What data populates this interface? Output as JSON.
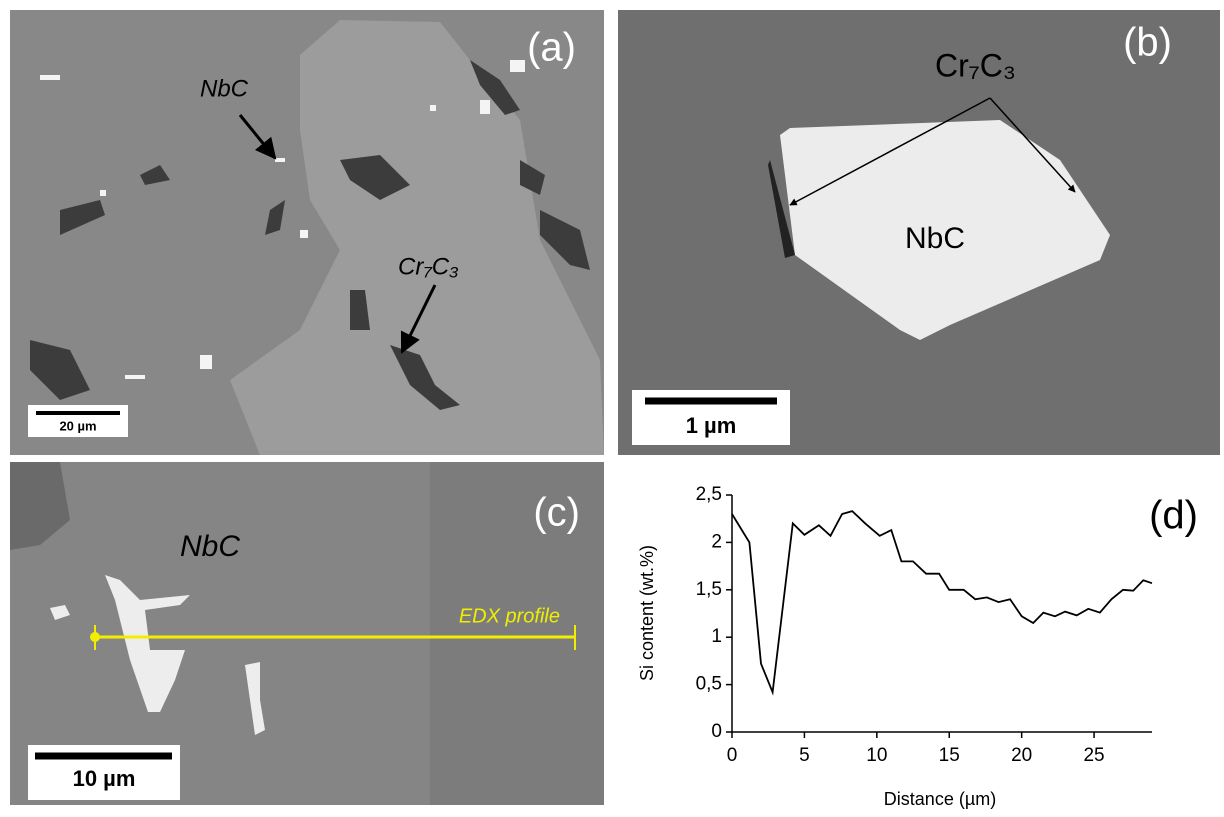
{
  "panels": {
    "a": {
      "label": "(a)",
      "annotations": [
        "NbC",
        "Cr₇C₃"
      ],
      "scale_bar": "20 µm"
    },
    "b": {
      "label": "(b)",
      "annotations": [
        "Cr₇C₃",
        "NbC"
      ],
      "scale_bar": "1 µm"
    },
    "c": {
      "label": "(c)",
      "annotations": [
        "NbC",
        "EDX profile"
      ],
      "scale_bar": "10 µm"
    },
    "d": {
      "label": "(d)"
    }
  },
  "chart_data": {
    "type": "line",
    "x": [
      0,
      1.2,
      2,
      2.8,
      4.2,
      5,
      6,
      6.8,
      7.6,
      8.3,
      9.2,
      10.2,
      11,
      11.7,
      12.5,
      13.4,
      14.3,
      15,
      16,
      16.8,
      17.6,
      18.4,
      19.2,
      20,
      20.8,
      21.5,
      22.3,
      23,
      23.8,
      24.6,
      25.4,
      26.2,
      27,
      27.7,
      28.4,
      29
    ],
    "values": [
      2.3,
      2.0,
      0.72,
      0.42,
      2.2,
      2.08,
      2.18,
      2.07,
      2.3,
      2.33,
      2.2,
      2.07,
      2.13,
      1.8,
      1.8,
      1.67,
      1.67,
      1.5,
      1.5,
      1.4,
      1.42,
      1.37,
      1.4,
      1.22,
      1.15,
      1.26,
      1.22,
      1.27,
      1.23,
      1.3,
      1.26,
      1.4,
      1.5,
      1.49,
      1.6,
      1.57
    ],
    "color": "#000000",
    "xlabel": "Distance (µm)",
    "ylabel": "Si content (wt.%)",
    "xlim": [
      0,
      29
    ],
    "ylim": [
      0,
      2.5
    ],
    "xticks": [
      0,
      5,
      10,
      15,
      20,
      25
    ],
    "yticks": [
      0,
      {
        "value": 0.5,
        "label": "0,5"
      },
      1,
      {
        "value": 1.5,
        "label": "1,5"
      },
      2,
      {
        "value": 2.5,
        "label": "2,5"
      }
    ]
  }
}
